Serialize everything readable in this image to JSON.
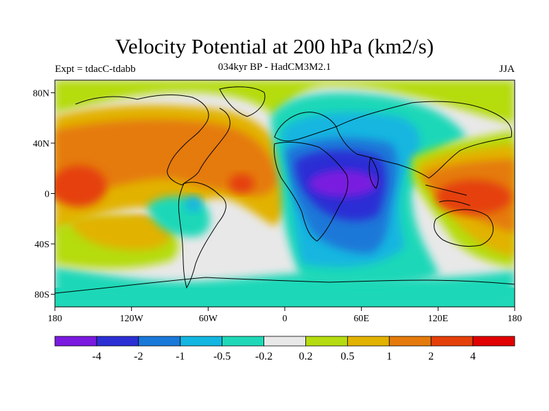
{
  "header": {
    "title": "Velocity Potential at 200 hPa (km2/s)",
    "subtitle": "034kyr BP - HadCM3M2.1",
    "experiment": "Expt = tdacC-tdabb",
    "season": "JJA"
  },
  "axes": {
    "lat_ticks": [
      "80N",
      "40N",
      "0",
      "40S",
      "80S"
    ],
    "lat_values": [
      80,
      40,
      0,
      -40,
      -80
    ],
    "lon_ticks": [
      "180",
      "120W",
      "60W",
      "0",
      "60E",
      "120E",
      "180"
    ],
    "lon_values": [
      -180,
      -120,
      -60,
      0,
      60,
      120,
      180
    ]
  },
  "colorbar": {
    "levels": [
      "-4",
      "-2",
      "-1",
      "-0.5",
      "-0.2",
      "0.2",
      "0.5",
      "1",
      "2",
      "4"
    ],
    "colors": [
      "#7a1adf",
      "#2c2fd4",
      "#1a78d8",
      "#12b6e0",
      "#1fd8b8",
      "#e8e8e8",
      "#b5dc10",
      "#e2b200",
      "#e57a0c",
      "#e5400a",
      "#e00000"
    ]
  }
}
